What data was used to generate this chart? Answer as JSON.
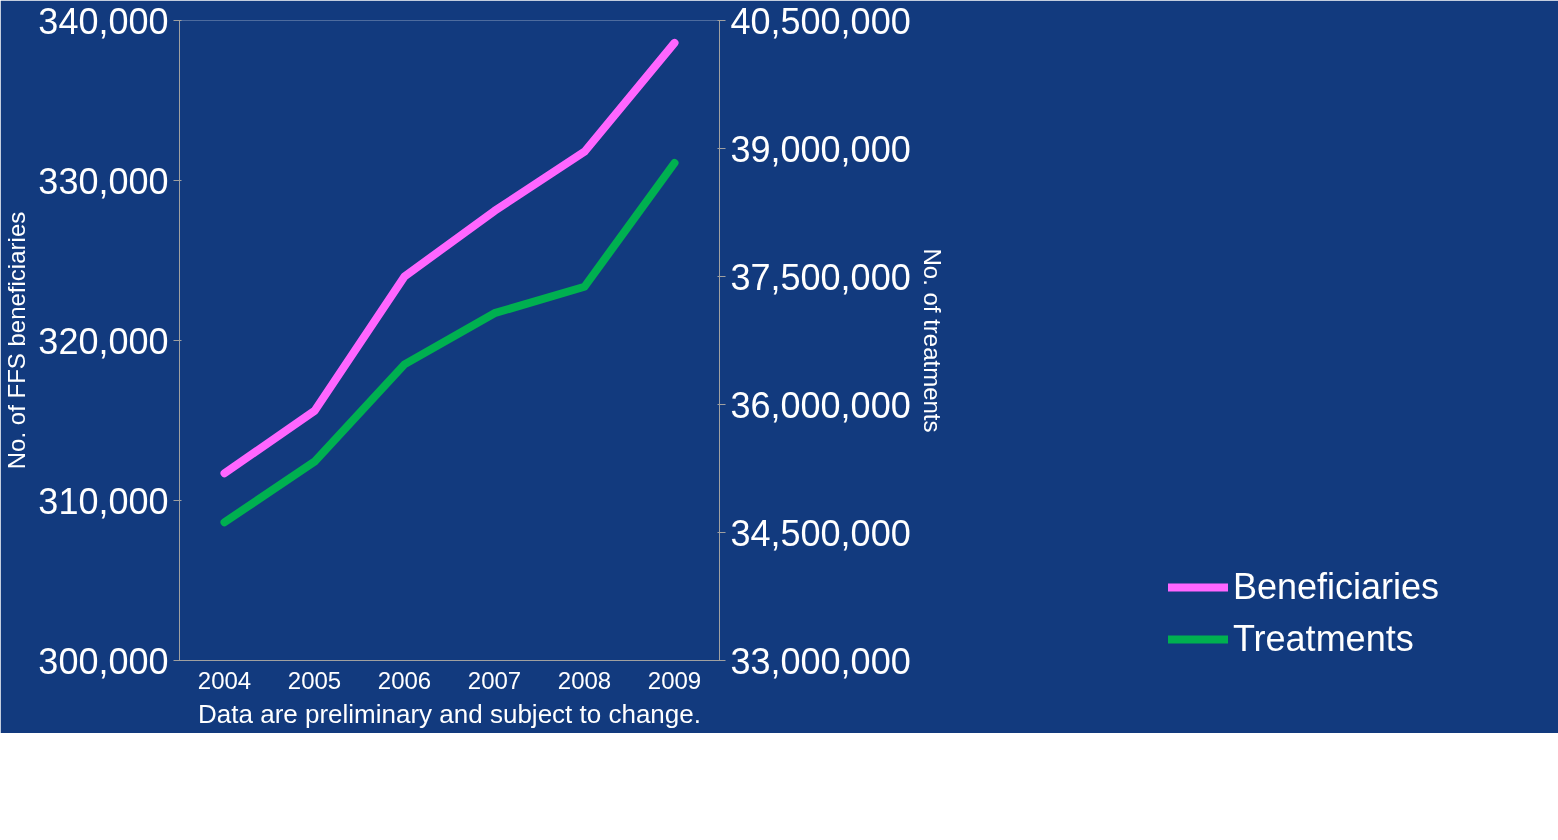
{
  "chart_data": {
    "type": "line",
    "categories": [
      "2004",
      "2005",
      "2006",
      "2007",
      "2008",
      "2009"
    ],
    "series": [
      {
        "name": "Beneficiaries",
        "color": "#ff66ff",
        "values": [
          311700,
          315600,
          324000,
          328100,
          331800,
          338600
        ]
      },
      {
        "name": "Treatments",
        "color": "#00b050",
        "axis": "y2",
        "values": [
          34620000,
          35330000,
          36470000,
          37070000,
          37380000,
          38830000
        ]
      }
    ],
    "ylabel": "No. of FFS beneficiaries",
    "y2label": "No. of treatments",
    "ylim": [
      300000,
      340000
    ],
    "yticks": [
      {
        "value": 300000,
        "label": "300,000"
      },
      {
        "value": 310000,
        "label": "310,000"
      },
      {
        "value": 320000,
        "label": "320,000"
      },
      {
        "value": 330000,
        "label": "330,000"
      },
      {
        "value": 340000,
        "label": "340,000"
      }
    ],
    "y2lim": [
      33000000,
      40500000
    ],
    "y2ticks": [
      {
        "value": 33000000,
        "label": "33,000,000"
      },
      {
        "value": 34500000,
        "label": "34,500,000"
      },
      {
        "value": 36000000,
        "label": "36,000,000"
      },
      {
        "value": 37500000,
        "label": "37,500,000"
      },
      {
        "value": 39000000,
        "label": "39,000,000"
      },
      {
        "value": 40500000,
        "label": "40,500,000"
      }
    ],
    "annotations": [
      "Data are preliminary and subject to change."
    ],
    "grid": false,
    "legend": "bottom right",
    "marker": "none",
    "line_style": "solid"
  }
}
